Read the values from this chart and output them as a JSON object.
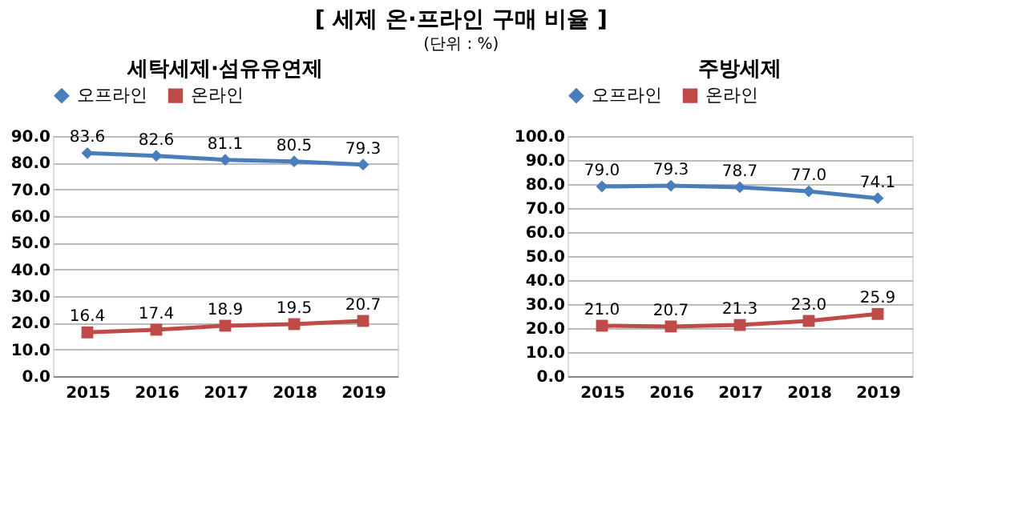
{
  "chart_data": [
    {
      "type": "line",
      "title": "세탁세제·섬유유연제",
      "annotations": [
        "[ 세제 온·프라인 구매 비율 ]"
      ],
      "categories": [
        "2015",
        "2016",
        "2017",
        "2018",
        "2019"
      ],
      "series": [
        {
          "name": "오프라인",
          "color": "#4a7ebb",
          "marker": "diamond",
          "values": [
            83.6,
            82.6,
            81.1,
            80.5,
            79.3
          ],
          "value_labels": [
            "83.6",
            "82.6",
            "81.1",
            "80.5",
            "79.3"
          ]
        },
        {
          "name": "온라인",
          "color": "#be4b48",
          "marker": "square",
          "values": [
            16.4,
            17.4,
            18.9,
            19.5,
            20.7
          ],
          "value_labels": [
            "16.4",
            "17.4",
            "18.9",
            "19.5",
            "20.7"
          ]
        }
      ],
      "ylim": [
        0,
        90
      ],
      "yticks": [
        {
          "value": 0,
          "label": "0.0"
        },
        {
          "value": 10,
          "label": "10.0"
        },
        {
          "value": 20,
          "label": "20.0"
        },
        {
          "value": 30,
          "label": "30.0"
        },
        {
          "value": 40,
          "label": "40.0"
        },
        {
          "value": 50,
          "label": "50.0"
        },
        {
          "value": 60,
          "label": "60.0"
        },
        {
          "value": 70,
          "label": "70.0"
        },
        {
          "value": 80,
          "label": "80.0"
        },
        {
          "value": 90,
          "label": "90.0"
        }
      ],
      "grid": "y",
      "legend": "top"
    },
    {
      "type": "line",
      "title": "주방세제",
      "annotations": [
        "(단위 : %)"
      ],
      "categories": [
        "2015",
        "2016",
        "2017",
        "2018",
        "2019"
      ],
      "series": [
        {
          "name": "오프라인",
          "color": "#4a7ebb",
          "marker": "diamond",
          "values": [
            79.0,
            79.3,
            78.7,
            77.0,
            74.1
          ],
          "value_labels": [
            "79.0",
            "79.3",
            "78.7",
            "77.0",
            "74.1"
          ]
        },
        {
          "name": "온라인",
          "color": "#be4b48",
          "marker": "square",
          "values": [
            21.0,
            20.7,
            21.3,
            23.0,
            25.9
          ],
          "value_labels": [
            "21.0",
            "20.7",
            "21.3",
            "23.0",
            "25.9"
          ]
        }
      ],
      "ylim": [
        0,
        100
      ],
      "yticks": [
        {
          "value": 0,
          "label": "0.0"
        },
        {
          "value": 10,
          "label": "10.0"
        },
        {
          "value": 20,
          "label": "20.0"
        },
        {
          "value": 30,
          "label": "30.0"
        },
        {
          "value": 40,
          "label": "40.0"
        },
        {
          "value": 50,
          "label": "50.0"
        },
        {
          "value": 60,
          "label": "60.0"
        },
        {
          "value": 70,
          "label": "70.0"
        },
        {
          "value": 80,
          "label": "80.0"
        },
        {
          "value": 90,
          "label": "90.0"
        },
        {
          "value": 100,
          "label": "100.0"
        }
      ],
      "grid": "y",
      "legend": "top"
    }
  ]
}
